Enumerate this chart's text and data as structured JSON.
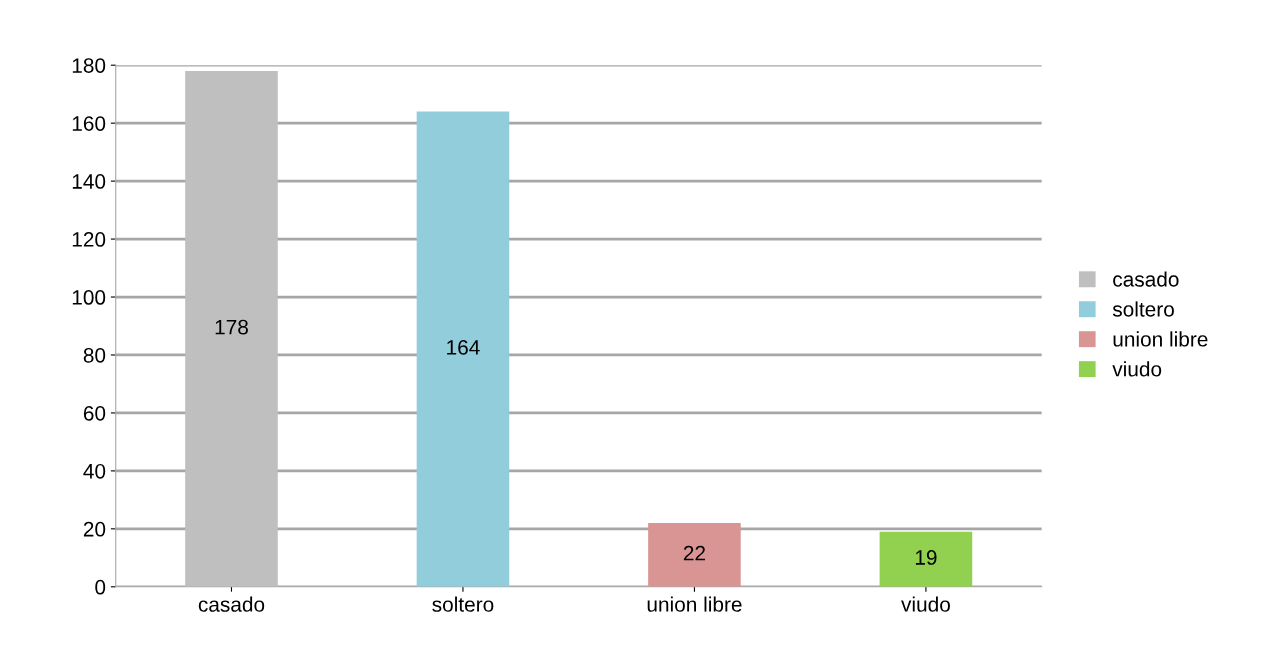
{
  "chart_data": {
    "type": "bar",
    "categories": [
      "casado",
      "soltero",
      "union libre",
      "viudo"
    ],
    "series": [
      {
        "name": "casado",
        "color": "#bfbfbf",
        "values": [
          178,
          null,
          null,
          null
        ]
      },
      {
        "name": "soltero",
        "color": "#92cddc",
        "values": [
          null,
          164,
          null,
          null
        ]
      },
      {
        "name": "union libre",
        "color": "#d99594",
        "values": [
          null,
          null,
          22,
          null
        ]
      },
      {
        "name": "viudo",
        "color": "#92d050",
        "values": [
          null,
          null,
          null,
          19
        ]
      }
    ],
    "ylim": [
      0,
      180
    ],
    "yticks": [
      0,
      20,
      40,
      60,
      80,
      100,
      120,
      140,
      160,
      180
    ],
    "grid": "y",
    "legend": "right",
    "data_labels": true
  }
}
